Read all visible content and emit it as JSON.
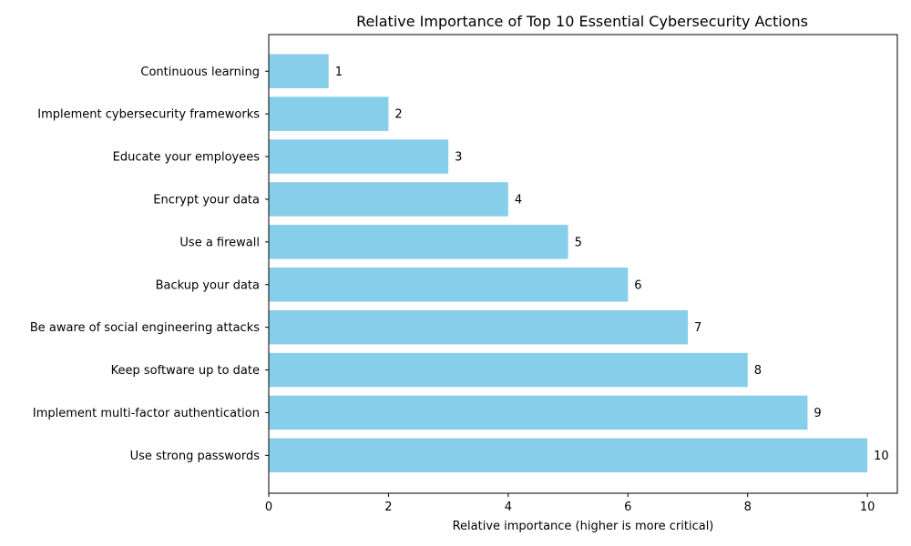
{
  "chart_data": {
    "type": "bar",
    "orientation": "horizontal",
    "title": "Relative Importance of Top 10 Essential Cybersecurity Actions",
    "xlabel": "Relative importance (higher is more critical)",
    "ylabel": "",
    "categories": [
      "Continuous learning",
      "Implement cybersecurity frameworks",
      "Educate your employees",
      "Encrypt your data",
      "Use a firewall",
      "Backup your data",
      "Be aware of social engineering attacks",
      "Keep software up to date",
      "Implement multi-factor authentication",
      "Use strong passwords"
    ],
    "values": [
      1,
      2,
      3,
      4,
      5,
      6,
      7,
      8,
      9,
      10
    ],
    "value_labels": [
      "1",
      "2",
      "3",
      "4",
      "5",
      "6",
      "7",
      "8",
      "9",
      "10"
    ],
    "xlim": [
      0,
      10.5
    ],
    "xticks": [
      0,
      2,
      4,
      6,
      8,
      10
    ],
    "xtick_labels": [
      "0",
      "2",
      "4",
      "6",
      "8",
      "10"
    ],
    "grid": false,
    "bar_color": "#87ceeb"
  }
}
